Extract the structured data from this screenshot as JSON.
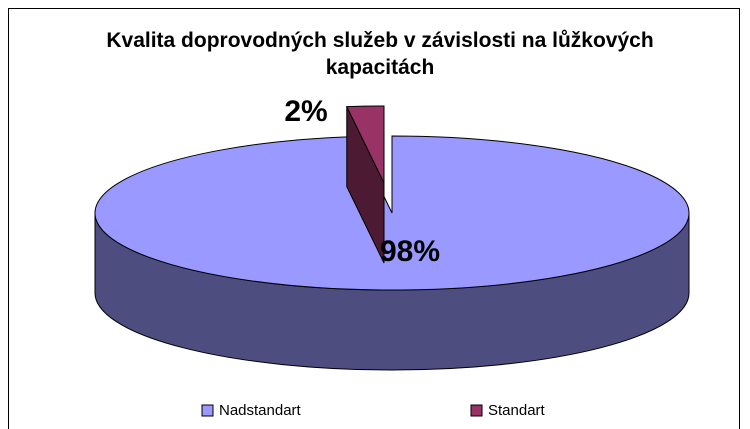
{
  "chart_data": {
    "type": "pie",
    "title": "Kvalita doprovodných služeb v závislosti na lůžkových kapacitách",
    "categories": [
      "Nadstandart",
      "Standart"
    ],
    "values": [
      98,
      2
    ],
    "value_labels": [
      "98%",
      "2%"
    ],
    "colors": [
      "#9999ff",
      "#993366"
    ],
    "legend": "bottom"
  }
}
